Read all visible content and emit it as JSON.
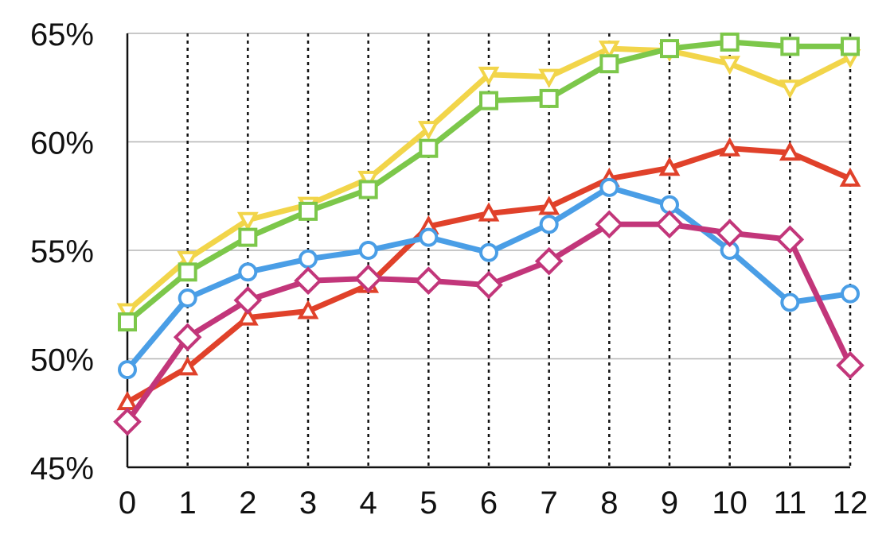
{
  "chart_data": {
    "type": "line",
    "title": "",
    "xlabel": "",
    "ylabel": "",
    "x": [
      0,
      1,
      2,
      3,
      4,
      5,
      6,
      7,
      8,
      9,
      10,
      11,
      12
    ],
    "x_tick_labels": [
      "0",
      "1",
      "2",
      "3",
      "4",
      "5",
      "6",
      "7",
      "8",
      "9",
      "10",
      "11",
      "12"
    ],
    "y_tick_labels": [
      "45%",
      "50%",
      "55%",
      "60%",
      "65%"
    ],
    "y_ticks": [
      45,
      50,
      55,
      60,
      65
    ],
    "ylim": [
      45,
      65
    ],
    "xlim": [
      0,
      12
    ],
    "grid": {
      "horizontal": "solid",
      "vertical": "dotted"
    },
    "legend": "none",
    "series": [
      {
        "color": "#f2d54a",
        "marker": "triangle-down",
        "values": [
          52.2,
          54.6,
          56.4,
          57.1,
          58.3,
          60.6,
          63.1,
          63.0,
          64.3,
          64.2,
          63.6,
          62.5,
          63.9
        ]
      },
      {
        "color": "#7cc74a",
        "marker": "square",
        "values": [
          51.7,
          54.0,
          55.6,
          56.8,
          57.8,
          59.7,
          61.9,
          62.0,
          63.6,
          64.3,
          64.6,
          64.4,
          64.4
        ]
      },
      {
        "color": "#e0412a",
        "marker": "triangle-up",
        "values": [
          48.0,
          49.6,
          51.9,
          52.2,
          53.4,
          56.1,
          56.7,
          57.0,
          58.3,
          58.8,
          59.7,
          59.5,
          58.3
        ]
      },
      {
        "color": "#4a9ee6",
        "marker": "circle",
        "values": [
          49.5,
          52.8,
          54.0,
          54.6,
          55.0,
          55.6,
          54.9,
          56.2,
          57.9,
          57.1,
          55.0,
          52.6,
          53.0
        ]
      },
      {
        "color": "#c2367a",
        "marker": "diamond",
        "values": [
          47.1,
          51.0,
          52.7,
          53.6,
          53.7,
          53.6,
          53.4,
          54.5,
          56.2,
          56.2,
          55.8,
          55.5,
          49.7
        ]
      }
    ]
  }
}
